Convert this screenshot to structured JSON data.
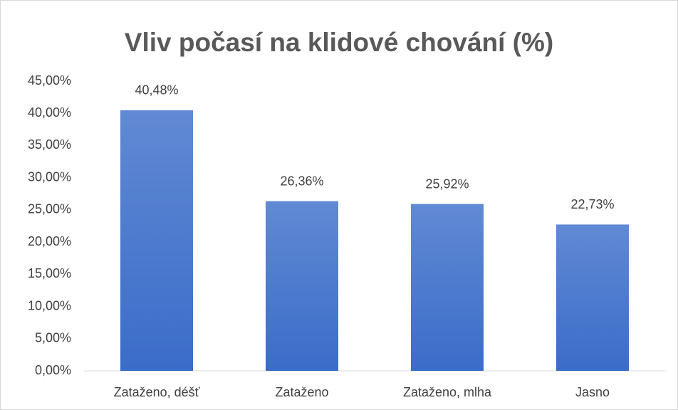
{
  "chart_data": {
    "type": "bar",
    "title": "Vliv počasí na klidové chování (%)",
    "categories": [
      "Zataženo, déšť",
      "Zataženo",
      "Zataženo, mlha",
      "Jasno"
    ],
    "values": [
      40.48,
      26.36,
      25.92,
      22.73
    ],
    "value_labels": [
      "40,48%",
      "26,36%",
      "25,92%",
      "22,73%"
    ],
    "color": "#3a6cc9",
    "ylim": [
      0,
      45
    ],
    "yticks": [
      {
        "value": 0,
        "label": "0,00%"
      },
      {
        "value": 5,
        "label": "5,00%"
      },
      {
        "value": 10,
        "label": "10,00%"
      },
      {
        "value": 15,
        "label": "15,00%"
      },
      {
        "value": 20,
        "label": "20,00%"
      },
      {
        "value": 25,
        "label": "25,00%"
      },
      {
        "value": 30,
        "label": "30,00%"
      },
      {
        "value": 35,
        "label": "35,00%"
      },
      {
        "value": 40,
        "label": "40,00%"
      },
      {
        "value": 45,
        "label": "45,00%"
      }
    ],
    "grid": false
  }
}
